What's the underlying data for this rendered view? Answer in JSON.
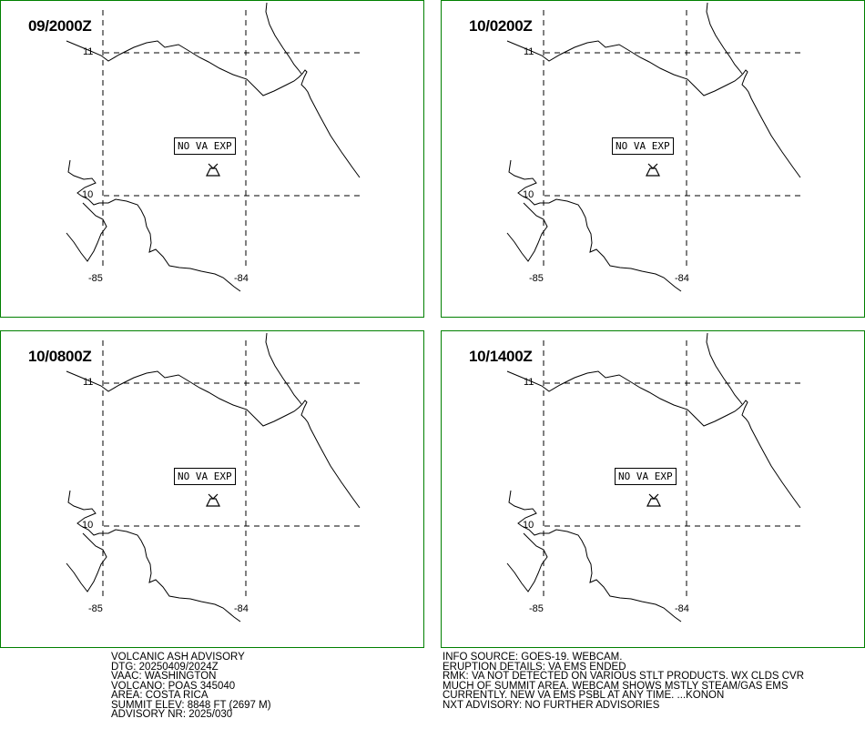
{
  "panels": [
    {
      "time": "09/2000Z",
      "label": "NO VA EXP"
    },
    {
      "time": "10/0200Z",
      "label": "NO VA EXP"
    },
    {
      "time": "10/0800Z",
      "label": "NO VA EXP"
    },
    {
      "time": "10/1400Z",
      "label": "NO VA EXP"
    }
  ],
  "grid": {
    "lat_top": "11",
    "lat_bottom": "10",
    "lon_left": "-85",
    "lon_right": "-84"
  },
  "advisory": {
    "title": "VOLCANIC ASH ADVISORY",
    "dtg": "DTG: 20250409/2024Z",
    "vaac": "VAAC: WASHINGTON",
    "volcano": "VOLCANO: POAS 345040",
    "area": "AREA: COSTA RICA",
    "summit": "SUMMIT ELEV: 8848 FT (2697 M)",
    "nr": "ADVISORY NR: 2025/030"
  },
  "info": {
    "source": "INFO SOURCE: GOES-19. WEBCAM.",
    "eruption": "ERUPTION DETAILS: VA EMS ENDED",
    "rmk1": "RMK: VA NOT DETECTED ON VARIOUS STLT PRODUCTS. WX CLDS CVR",
    "rmk2": "MUCH OF SUMMIT AREA. WEBCAM SHOWS MSTLY STEAM/GAS EMS",
    "rmk3": "CURRENTLY. NEW VA EMS PSBL AT ANY TIME. ...KONON",
    "next": "NXT ADVISORY: NO FURTHER ADVISORIES"
  },
  "colors": {
    "frame": "#008000",
    "lines": "#000000"
  }
}
